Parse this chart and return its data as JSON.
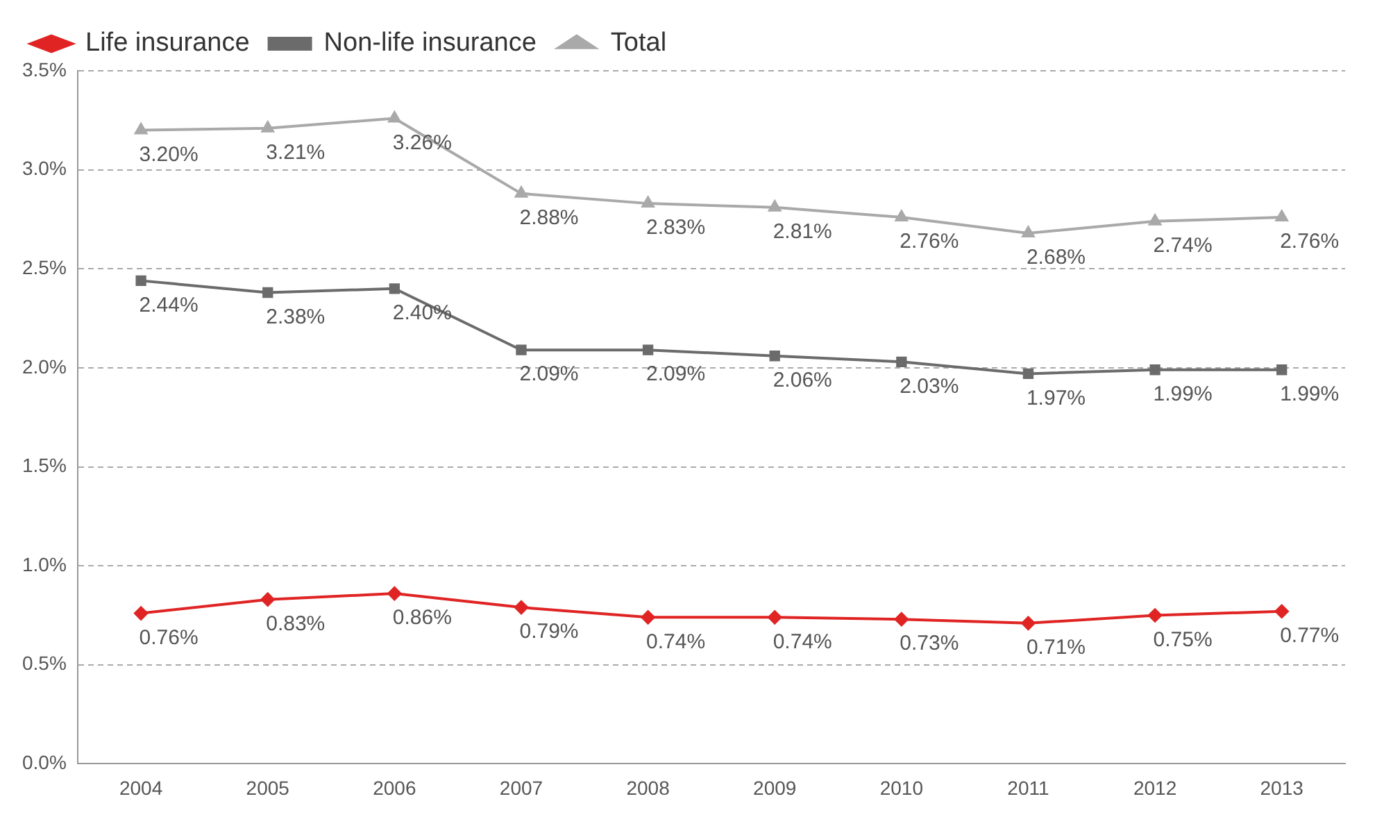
{
  "chart_data": {
    "type": "line",
    "categories": [
      "2004",
      "2005",
      "2006",
      "2007",
      "2008",
      "2009",
      "2010",
      "2011",
      "2012",
      "2013"
    ],
    "series": [
      {
        "name": "Life insurance",
        "color": "#e02424",
        "marker": "diamond",
        "values": [
          0.76,
          0.83,
          0.86,
          0.79,
          0.74,
          0.74,
          0.73,
          0.71,
          0.75,
          0.77
        ],
        "value_labels": [
          "0.76%",
          "0.83%",
          "0.86%",
          "0.79%",
          "0.74%",
          "0.74%",
          "0.73%",
          "0.71%",
          "0.75%",
          "0.77%"
        ]
      },
      {
        "name": "Non-life insurance",
        "color": "#6b6b6b",
        "marker": "square",
        "values": [
          2.44,
          2.38,
          2.4,
          2.09,
          2.09,
          2.06,
          2.03,
          1.97,
          1.99,
          1.99
        ],
        "value_labels": [
          "2.44%",
          "2.38%",
          "2.40%",
          "2.09%",
          "2.09%",
          "2.06%",
          "2.03%",
          "1.97%",
          "1.99%",
          "1.99%"
        ]
      },
      {
        "name": "Total",
        "color": "#a9a9a9",
        "marker": "triangle",
        "values": [
          3.2,
          3.21,
          3.26,
          2.88,
          2.83,
          2.81,
          2.76,
          2.68,
          2.74,
          2.76
        ],
        "value_labels": [
          "3.20%",
          "3.21%",
          "3.26%",
          "2.88%",
          "2.83%",
          "2.81%",
          "2.76%",
          "2.68%",
          "2.74%",
          "2.76%"
        ]
      }
    ],
    "ylim": [
      0,
      3.5
    ],
    "yticks": [
      {
        "value": 0,
        "label": "0.0%"
      },
      {
        "value": 0.5,
        "label": "0.5%"
      },
      {
        "value": 1,
        "label": "1.0%"
      },
      {
        "value": 1.5,
        "label": "1.5%"
      },
      {
        "value": 2,
        "label": "2.0%"
      },
      {
        "value": 2.5,
        "label": "2.5%"
      },
      {
        "value": 3,
        "label": "3.0%"
      },
      {
        "value": 3.5,
        "label": "3.5%"
      }
    ],
    "grid": "y",
    "legend": "top left",
    "line_style": "solid"
  }
}
